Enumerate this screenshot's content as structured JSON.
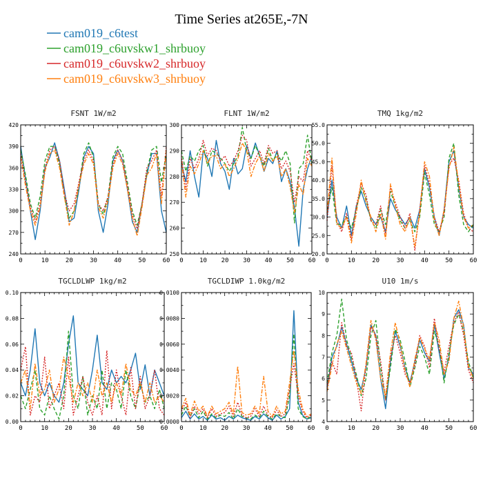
{
  "title": "Time Series at265E,-7N",
  "legend": [
    {
      "name": "cam019_c6test",
      "color": "#1f77b4",
      "dash": "solid"
    },
    {
      "name": "cam019_c6uvskw1_shrbuoy",
      "color": "#2ca02c",
      "dash": "dashed"
    },
    {
      "name": "cam019_c6uvskw2_shrbuoy",
      "color": "#d62728",
      "dash": "dotted"
    },
    {
      "name": "cam019_c6uvskw3_shrbuoy",
      "color": "#ff7f0e",
      "dash": "dashdot"
    }
  ],
  "chart_data": [
    {
      "type": "line",
      "title": "FSNT 1W/m2",
      "xlim": [
        0,
        60
      ],
      "ylim": [
        240,
        420
      ],
      "xticks": [
        "0",
        "10",
        "20",
        "30",
        "40",
        "50",
        "60"
      ],
      "yticks": [
        "240",
        "270",
        "300",
        "330",
        "360",
        "390",
        "420"
      ],
      "x": [
        0,
        2,
        4,
        6,
        8,
        10,
        12,
        14,
        16,
        18,
        20,
        22,
        24,
        26,
        28,
        30,
        32,
        34,
        36,
        38,
        40,
        42,
        44,
        46,
        48,
        50,
        52,
        54,
        56,
        58,
        60
      ],
      "series": [
        {
          "values": [
            390,
            345,
            300,
            260,
            300,
            360,
            375,
            395,
            370,
            330,
            285,
            290,
            330,
            375,
            390,
            380,
            300,
            270,
            310,
            370,
            385,
            370,
            330,
            285,
            270,
            310,
            350,
            380,
            380,
            300,
            270
          ]
        },
        {
          "values": [
            385,
            350,
            310,
            290,
            320,
            370,
            390,
            390,
            365,
            320,
            290,
            300,
            335,
            380,
            395,
            375,
            310,
            295,
            320,
            375,
            390,
            380,
            340,
            300,
            280,
            310,
            355,
            385,
            390,
            340,
            380
          ]
        },
        {
          "values": [
            380,
            340,
            305,
            285,
            310,
            360,
            385,
            390,
            370,
            325,
            300,
            310,
            340,
            370,
            385,
            370,
            310,
            300,
            320,
            365,
            385,
            370,
            335,
            295,
            275,
            310,
            360,
            370,
            385,
            320,
            390
          ]
        },
        {
          "values": [
            375,
            335,
            300,
            280,
            305,
            355,
            380,
            385,
            360,
            320,
            280,
            300,
            335,
            365,
            380,
            365,
            305,
            290,
            315,
            360,
            380,
            365,
            330,
            290,
            265,
            305,
            350,
            360,
            380,
            310,
            385
          ]
        }
      ]
    },
    {
      "type": "line",
      "title": "FLNT 1W/m2",
      "xlim": [
        0,
        60
      ],
      "ylim": [
        250,
        300
      ],
      "xticks": [
        "0",
        "10",
        "20",
        "30",
        "40",
        "50",
        "60"
      ],
      "yticks": [
        "250",
        "260",
        "270",
        "280",
        "290",
        "300"
      ],
      "x": [
        0,
        2,
        4,
        6,
        8,
        10,
        12,
        14,
        16,
        18,
        20,
        22,
        24,
        26,
        28,
        30,
        32,
        34,
        36,
        38,
        40,
        42,
        44,
        46,
        48,
        50,
        52,
        54,
        56,
        58,
        60
      ],
      "series": [
        {
          "values": [
            285,
            278,
            290,
            280,
            272,
            290,
            287,
            280,
            294,
            285,
            282,
            275,
            287,
            281,
            283,
            292,
            287,
            293,
            288,
            282,
            287,
            285,
            290,
            278,
            283,
            278,
            268,
            253,
            275,
            283,
            288
          ]
        },
        {
          "values": [
            290,
            282,
            288,
            286,
            290,
            292,
            284,
            290,
            289,
            287,
            285,
            282,
            285,
            288,
            299,
            290,
            287,
            292,
            288,
            284,
            291,
            286,
            289,
            286,
            290,
            285,
            262,
            283,
            285,
            296,
            285
          ]
        },
        {
          "values": [
            288,
            275,
            287,
            283,
            287,
            294,
            288,
            291,
            290,
            286,
            288,
            284,
            286,
            290,
            296,
            294,
            284,
            287,
            290,
            285,
            292,
            289,
            290,
            283,
            286,
            282,
            270,
            280,
            278,
            290,
            286
          ]
        },
        {
          "values": [
            286,
            272,
            284,
            281,
            285,
            290,
            285,
            288,
            288,
            283,
            285,
            280,
            283,
            287,
            293,
            290,
            280,
            285,
            288,
            282,
            289,
            286,
            288,
            280,
            283,
            276,
            266,
            277,
            273,
            287,
            284
          ]
        }
      ]
    },
    {
      "type": "line",
      "title": "TMQ 1kg/m2",
      "xlim": [
        0,
        60
      ],
      "ylim": [
        20,
        55
      ],
      "xticks": [
        "0",
        "10",
        "20",
        "30",
        "40",
        "50",
        "60"
      ],
      "yticks": [
        "20.0",
        "25.0",
        "30.0",
        "35.0",
        "40.0",
        "45.0",
        "50.0",
        "55.0"
      ],
      "x": [
        0,
        2,
        4,
        6,
        8,
        10,
        12,
        14,
        16,
        18,
        20,
        22,
        24,
        26,
        28,
        30,
        32,
        34,
        36,
        38,
        40,
        42,
        44,
        46,
        48,
        50,
        52,
        54,
        56,
        58,
        60
      ],
      "series": [
        {
          "values": [
            30,
            40,
            30,
            27,
            33,
            25,
            33,
            37,
            33,
            30,
            28,
            30,
            26,
            35,
            32,
            30,
            28,
            30,
            27,
            32,
            43,
            38,
            30,
            25,
            32,
            45,
            48,
            38,
            30,
            28,
            27
          ]
        },
        {
          "values": [
            32,
            38,
            28,
            28,
            30,
            27,
            32,
            38,
            35,
            29,
            27,
            32,
            28,
            37,
            33,
            29,
            27,
            29,
            26,
            30,
            42,
            36,
            28,
            26,
            30,
            46,
            50,
            36,
            28,
            26,
            28
          ]
        },
        {
          "values": [
            29,
            44,
            29,
            26,
            31,
            24,
            33,
            39,
            36,
            29,
            28,
            33,
            25,
            38,
            34,
            30,
            27,
            31,
            21,
            32,
            44,
            39,
            30,
            26,
            31,
            44,
            46,
            40,
            31,
            27,
            26
          ]
        },
        {
          "values": [
            31,
            46,
            28,
            27,
            30,
            23,
            31,
            40,
            34,
            30,
            26,
            31,
            24,
            39,
            33,
            28,
            26,
            30,
            22,
            31,
            45,
            41,
            29,
            25,
            32,
            43,
            49,
            39,
            30,
            27,
            28
          ]
        }
      ]
    },
    {
      "type": "line",
      "title": "TGCLDLWP 1kg/m2",
      "xlim": [
        0,
        60
      ],
      "ylim": [
        0,
        0.1
      ],
      "xticks": [
        "0",
        "10",
        "20",
        "30",
        "40",
        "50",
        "60"
      ],
      "yticks": [
        "0.00",
        "0.02",
        "0.04",
        "0.06",
        "0.08",
        "0.10"
      ],
      "x": [
        0,
        2,
        4,
        6,
        8,
        10,
        12,
        14,
        16,
        18,
        20,
        22,
        24,
        26,
        28,
        30,
        32,
        34,
        36,
        38,
        40,
        42,
        44,
        46,
        48,
        50,
        52,
        54,
        56,
        58,
        60
      ],
      "series": [
        {
          "values": [
            0.03,
            0.02,
            0.04,
            0.072,
            0.03,
            0.02,
            0.03,
            0.02,
            0.015,
            0.03,
            0.06,
            0.082,
            0.03,
            0.025,
            0.02,
            0.04,
            0.067,
            0.03,
            0.025,
            0.04,
            0.03,
            0.035,
            0.03,
            0.04,
            0.053,
            0.025,
            0.044,
            0.02,
            0.04,
            0.03,
            0.02
          ]
        },
        {
          "values": [
            0.02,
            0.01,
            0.025,
            0.04,
            0.01,
            0.005,
            0.02,
            0.01,
            0.002,
            0.02,
            0.07,
            0.02,
            0.01,
            0.035,
            0.005,
            0.02,
            0.01,
            0.04,
            0.01,
            0.03,
            0.025,
            0.01,
            0.04,
            0.02,
            0.01,
            0.03,
            0.015,
            0.02,
            0.01,
            0.025,
            0.01
          ]
        },
        {
          "values": [
            0.04,
            0.058,
            0.005,
            0.02,
            0.015,
            0.05,
            0.01,
            0.02,
            0.03,
            0.01,
            0.05,
            0.005,
            0.02,
            0.035,
            0.015,
            0.005,
            0.02,
            0.005,
            0.055,
            0.01,
            0.04,
            0.02,
            0.005,
            0.042,
            0.01,
            0.035,
            0.01,
            0.02,
            0.04,
            0.01,
            0.005
          ]
        },
        {
          "values": [
            0.03,
            0.04,
            0.01,
            0.045,
            0.02,
            0.025,
            0.04,
            0.015,
            0.025,
            0.05,
            0.035,
            0.015,
            0.03,
            0.02,
            0.03,
            0.015,
            0.04,
            0.02,
            0.03,
            0.015,
            0.03,
            0.02,
            0.045,
            0.025,
            0.02,
            0.03,
            0.015,
            0.03,
            0.015,
            0.02,
            0.015
          ]
        }
      ]
    },
    {
      "type": "line",
      "title": "TGCLDIWP 1.0kg/m2",
      "xlim": [
        0,
        60
      ],
      "ylim": [
        0,
        0.01
      ],
      "xticks": [
        "0",
        "10",
        "20",
        "30",
        "40",
        "50",
        "60"
      ],
      "yticks": [
        "0.0000",
        "0.0020",
        "0.0040",
        "0.0060",
        "0.0080",
        "0.0100"
      ],
      "x": [
        0,
        2,
        4,
        6,
        8,
        10,
        12,
        14,
        16,
        18,
        20,
        22,
        24,
        26,
        28,
        30,
        32,
        34,
        36,
        38,
        40,
        42,
        44,
        46,
        48,
        50,
        52,
        54,
        56,
        58,
        60
      ],
      "series": [
        {
          "values": [
            0.0003,
            0.0008,
            0.0002,
            0.0006,
            0.0002,
            0.0004,
            0.0001,
            0.0005,
            0.0002,
            0.0003,
            0.0001,
            0.0004,
            0.0002,
            0.0005,
            0.0003,
            0.0002,
            0.0001,
            0.0004,
            0.0002,
            0.0006,
            0.0003,
            0.0001,
            0.0005,
            0.0002,
            0.0004,
            0.001,
            0.0086,
            0.0015,
            0.0005,
            0.0002,
            0.0003
          ]
        },
        {
          "values": [
            0.0005,
            0.0012,
            0.0004,
            0.001,
            0.0003,
            0.0008,
            0.0002,
            0.0006,
            0.0003,
            0.0005,
            0.0004,
            0.0007,
            0.0002,
            0.001,
            0.0004,
            0.0003,
            0.0002,
            0.0005,
            0.0003,
            0.0008,
            0.0004,
            0.0002,
            0.0006,
            0.0004,
            0.0003,
            0.002,
            0.0068,
            0.001,
            0.0004,
            0.0002,
            0.0004
          ]
        },
        {
          "values": [
            0.0008,
            0.0015,
            0.0003,
            0.0012,
            0.0006,
            0.001,
            0.0003,
            0.001,
            0.0004,
            0.0006,
            0.0007,
            0.0012,
            0.0004,
            0.0015,
            0.0005,
            0.0003,
            0.0004,
            0.001,
            0.0004,
            0.0012,
            0.0005,
            0.0003,
            0.0009,
            0.0004,
            0.0006,
            0.0025,
            0.0045,
            0.002,
            0.0008,
            0.0003,
            0.0005
          ]
        },
        {
          "values": [
            0.001,
            0.0018,
            0.0005,
            0.0016,
            0.0008,
            0.0012,
            0.0004,
            0.0012,
            0.0006,
            0.0008,
            0.001,
            0.0015,
            0.0006,
            0.0043,
            0.0007,
            0.0005,
            0.0006,
            0.0012,
            0.0006,
            0.0035,
            0.0008,
            0.0004,
            0.0012,
            0.0006,
            0.0008,
            0.003,
            0.0055,
            0.0025,
            0.001,
            0.0004,
            0.0006
          ]
        }
      ]
    },
    {
      "type": "line",
      "title": "U10 1m/s",
      "xlim": [
        0,
        60
      ],
      "ylim": [
        4,
        10
      ],
      "xticks": [
        "0",
        "10",
        "20",
        "30",
        "40",
        "50",
        "60"
      ],
      "yticks": [
        "4",
        "5",
        "6",
        "7",
        "8",
        "9",
        "10"
      ],
      "x": [
        0,
        2,
        4,
        6,
        8,
        10,
        12,
        14,
        16,
        18,
        20,
        22,
        24,
        26,
        28,
        30,
        32,
        34,
        36,
        38,
        40,
        42,
        44,
        46,
        48,
        50,
        52,
        54,
        56,
        58,
        60
      ],
      "series": [
        {
          "values": [
            5.5,
            7.0,
            7.5,
            8.4,
            7.6,
            6.8,
            6.0,
            5.5,
            6.5,
            8.5,
            8.0,
            6.0,
            4.6,
            6.8,
            8.2,
            7.5,
            6.5,
            5.8,
            6.8,
            7.8,
            7.2,
            6.8,
            8.5,
            7.2,
            6.0,
            7.0,
            8.8,
            9.2,
            8.5,
            6.5,
            6.2
          ]
        },
        {
          "values": [
            5.8,
            7.2,
            8.0,
            9.7,
            7.8,
            7.0,
            6.2,
            5.2,
            6.0,
            8.0,
            8.7,
            6.5,
            5.0,
            6.5,
            8.3,
            7.8,
            6.8,
            5.6,
            6.5,
            7.5,
            7.0,
            6.2,
            8.2,
            7.5,
            5.8,
            7.2,
            8.5,
            9.0,
            8.2,
            6.8,
            6.0
          ]
        },
        {
          "values": [
            5.6,
            6.8,
            6.2,
            8.6,
            7.5,
            7.2,
            6.0,
            4.5,
            6.6,
            8.4,
            8.0,
            6.8,
            5.0,
            7.0,
            8.0,
            7.2,
            6.2,
            5.8,
            6.6,
            8.0,
            7.5,
            6.5,
            8.8,
            7.4,
            6.3,
            7.5,
            8.6,
            9.1,
            8.0,
            6.4,
            5.8
          ]
        },
        {
          "values": [
            5.4,
            6.6,
            7.6,
            8.2,
            7.4,
            6.6,
            5.8,
            5.3,
            6.7,
            8.7,
            7.8,
            6.0,
            5.2,
            7.2,
            8.6,
            7.6,
            6.4,
            5.6,
            6.9,
            7.9,
            7.4,
            6.9,
            8.6,
            7.8,
            6.2,
            6.8,
            8.8,
            9.6,
            8.4,
            6.6,
            6.0
          ]
        }
      ]
    }
  ]
}
